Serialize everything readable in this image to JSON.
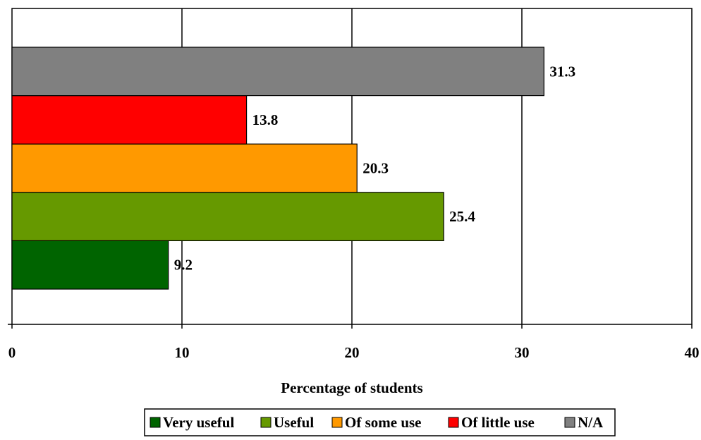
{
  "chart_data": {
    "type": "bar",
    "orientation": "horizontal",
    "xlabel": "Percentage of students",
    "ylabel": "",
    "xlim": [
      0,
      40
    ],
    "x_ticks": [
      0,
      10,
      20,
      30,
      40
    ],
    "grid": "vertical",
    "legend_position": "bottom",
    "series": [
      {
        "name": "Very useful",
        "value": 9.2,
        "label": "9.2",
        "color": "#006400"
      },
      {
        "name": "Useful",
        "value": 25.4,
        "label": "25.4",
        "color": "#669900"
      },
      {
        "name": "Of some use",
        "value": 20.3,
        "label": "20.3",
        "color": "#FF9900"
      },
      {
        "name": "Of little use",
        "value": 13.8,
        "label": "13.8",
        "color": "#FF0000"
      },
      {
        "name": "N/A",
        "value": 31.3,
        "label": "31.3",
        "color": "#808080"
      }
    ]
  }
}
